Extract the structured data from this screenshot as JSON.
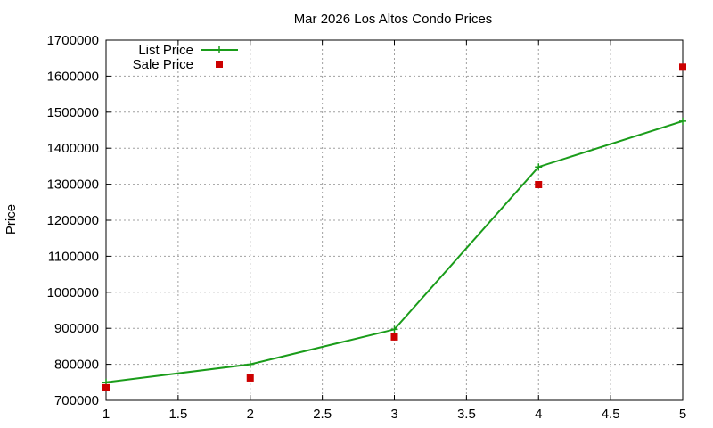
{
  "chart_data": {
    "type": "line",
    "title": "Mar 2026 Los Altos Condo Prices",
    "xlabel": "",
    "ylabel": "Price",
    "xlim": [
      1,
      5
    ],
    "ylim": [
      700000,
      1700000
    ],
    "x_ticks": [
      "1",
      "1.5",
      "2",
      "2.5",
      "3",
      "3.5",
      "4",
      "4.5",
      "5"
    ],
    "y_ticks": [
      "700000",
      "800000",
      "900000",
      "1000000",
      "1100000",
      "1200000",
      "1300000",
      "1400000",
      "1500000",
      "1600000",
      "1700000"
    ],
    "grid": true,
    "legend_position": "top-left",
    "series": [
      {
        "name": "List Price",
        "style": "line-with-plus-markers",
        "color": "#1a9c1a",
        "x": [
          1,
          2,
          3,
          4,
          5
        ],
        "y": [
          750000,
          800000,
          897000,
          1348000,
          1475000
        ]
      },
      {
        "name": "Sale Price",
        "style": "square-markers",
        "color": "#cc0000",
        "x": [
          1,
          2,
          3,
          4,
          5
        ],
        "y": [
          735000,
          762000,
          876000,
          1299000,
          1625000
        ]
      }
    ]
  }
}
